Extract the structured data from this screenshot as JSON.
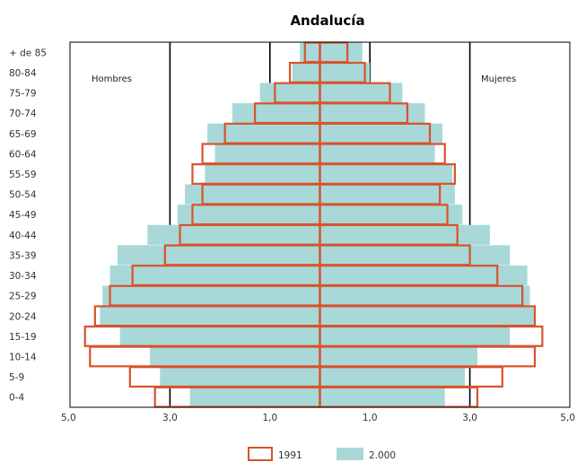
{
  "chart_data": {
    "type": "bar",
    "title": "Andalucía",
    "left_label": "Hombres",
    "right_label": "Mujeres",
    "categories": [
      "+ de 85",
      "80-84",
      "75-79",
      "70-74",
      "65-69",
      "60-64",
      "55-59",
      "50-54",
      "45-49",
      "40-44",
      "35-39",
      "30-34",
      "25-29",
      "20-24",
      "15-19",
      "10-14",
      "5-9",
      "0-4"
    ],
    "x_tick_labels": [
      "5,0",
      "3,0",
      "1,0",
      "1,0",
      "3,0",
      "5,0"
    ],
    "xlim": [
      -5,
      5
    ],
    "gridlines": [
      -3,
      -1,
      1,
      3
    ],
    "series": [
      {
        "name": "1991",
        "style": "outline",
        "color": "#d9532b",
        "men": [
          0.3,
          0.6,
          0.9,
          1.3,
          1.9,
          2.35,
          2.55,
          2.35,
          2.55,
          2.8,
          3.1,
          3.75,
          4.2,
          4.5,
          4.7,
          4.6,
          3.8,
          3.3
        ],
        "women": [
          0.55,
          0.9,
          1.4,
          1.75,
          2.2,
          2.5,
          2.7,
          2.4,
          2.55,
          2.75,
          3.0,
          3.55,
          4.05,
          4.3,
          4.45,
          4.3,
          3.65,
          3.15
        ]
      },
      {
        "name": "2.000",
        "style": "filled",
        "color": "#a8d8d8",
        "men": [
          0.4,
          0.55,
          1.2,
          1.75,
          2.25,
          2.1,
          2.3,
          2.7,
          2.85,
          3.45,
          4.05,
          4.2,
          4.35,
          4.4,
          4.0,
          3.4,
          3.2,
          2.6
        ],
        "women": [
          0.85,
          1.0,
          1.65,
          2.1,
          2.45,
          2.3,
          2.65,
          2.7,
          2.85,
          3.4,
          3.8,
          4.15,
          4.2,
          4.3,
          3.8,
          3.15,
          2.9,
          2.5
        ]
      }
    ]
  }
}
